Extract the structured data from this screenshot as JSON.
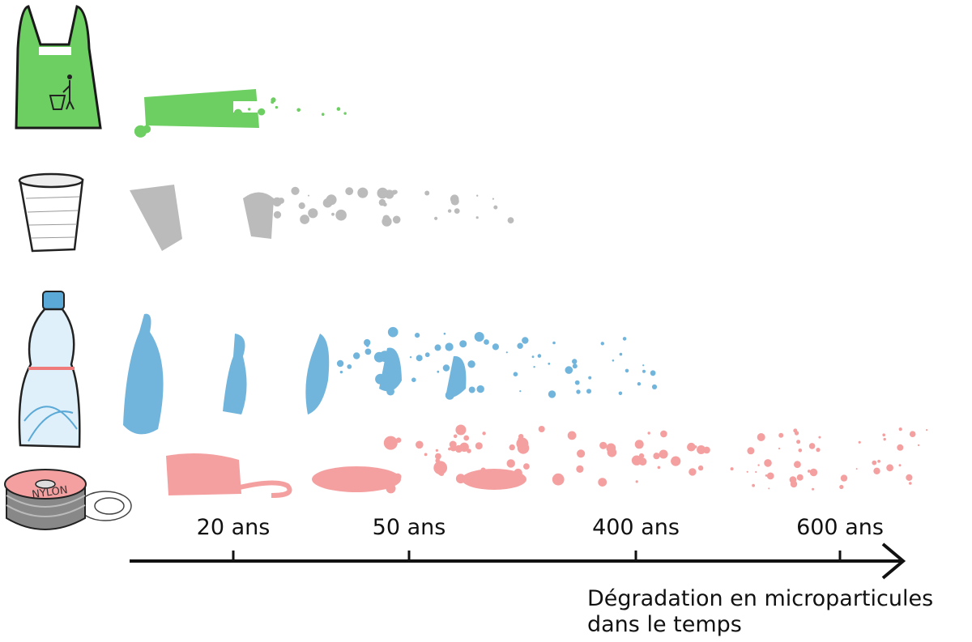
{
  "spool_label": "NYLON",
  "timeline": {
    "ticks": [
      "20 ans",
      "50 ans",
      "400 ans",
      "600 ans"
    ]
  },
  "axis_label": [
    "Dégradation en microparticules",
    "dans le temps"
  ]
}
